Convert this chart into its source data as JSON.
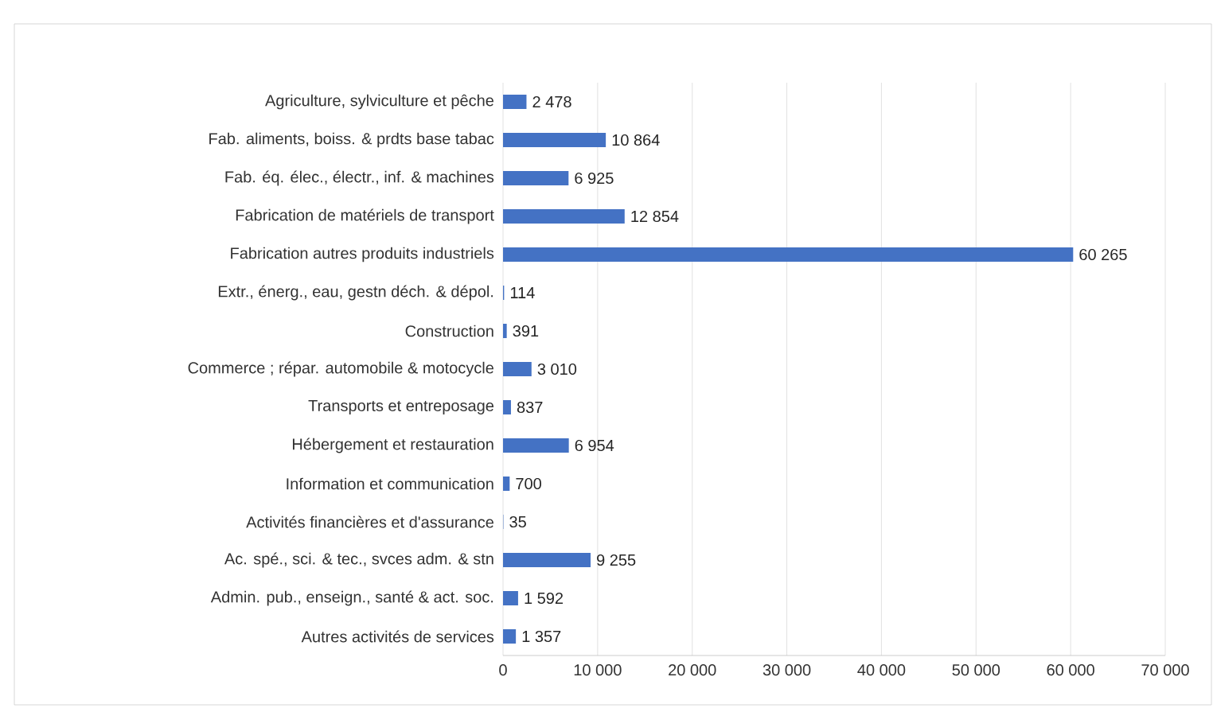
{
  "chart_data": {
    "type": "bar",
    "orientation": "horizontal",
    "categories": [
      "Agriculture, sylviculture et pêche",
      "Fab. aliments, boiss. & prdts base tabac",
      "Fab. éq. élec., électr., inf. & machines",
      "Fabrication de matériels de transport",
      "Fabrication autres produits industriels",
      "Extr., énerg., eau, gestn déch. & dépol.",
      "Construction",
      "Commerce ; répar. automobile & motocycle",
      "Transports et entreposage",
      "Hébergement et restauration",
      "Information et communication",
      "Activités financières et d'assurance",
      "Ac. spé., sci. & tec., svces adm. & stn",
      "Admin. pub., enseign., santé & act. soc.",
      "Autres activités de services"
    ],
    "values": [
      2478,
      10864,
      6925,
      12854,
      60265,
      114,
      391,
      3010,
      837,
      6954,
      700,
      35,
      9255,
      1592,
      1357
    ],
    "value_labels": [
      "2 478",
      "10 864",
      "6 925",
      "12 854",
      "60 265",
      "114",
      "391",
      "3 010",
      "837",
      "6 954",
      "700",
      "35",
      "9 255",
      "1 592",
      "1 357"
    ],
    "color": "#4472c4",
    "xlim": [
      0,
      70000
    ],
    "xticks": [
      0,
      {
        "value": 10000,
        "label": "10 000"
      },
      {
        "value": 20000,
        "label": "20 000"
      },
      {
        "value": 30000,
        "label": "30 000"
      },
      {
        "value": 40000,
        "label": "40 000"
      },
      {
        "value": 50000,
        "label": "50 000"
      },
      {
        "value": 60000,
        "label": "60 000"
      },
      {
        "value": 70000,
        "label": "70 000"
      }
    ],
    "grid": "x"
  }
}
